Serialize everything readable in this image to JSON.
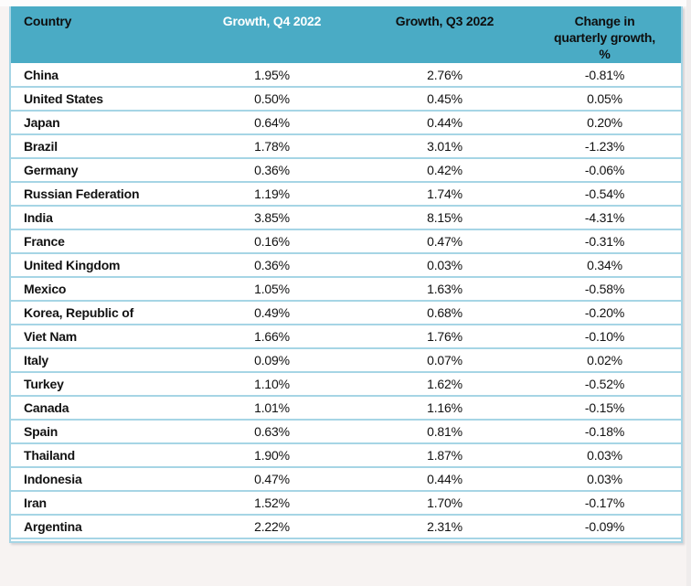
{
  "chart_data": {
    "type": "table",
    "title": "",
    "columns": [
      "Country",
      "Growth, Q4 2022",
      "Growth, Q3 2022",
      "Change in quarterly growth, %"
    ],
    "rows": [
      [
        "China",
        "1.95%",
        "2.76%",
        "-0.81%"
      ],
      [
        "United States",
        "0.50%",
        "0.45%",
        "0.05%"
      ],
      [
        "Japan",
        "0.64%",
        "0.44%",
        "0.20%"
      ],
      [
        "Brazil",
        "1.78%",
        "3.01%",
        "-1.23%"
      ],
      [
        "Germany",
        "0.36%",
        "0.42%",
        "-0.06%"
      ],
      [
        "Russian Federation",
        "1.19%",
        "1.74%",
        "-0.54%"
      ],
      [
        "India",
        "3.85%",
        "8.15%",
        "-4.31%"
      ],
      [
        "France",
        "0.16%",
        "0.47%",
        "-0.31%"
      ],
      [
        "United Kingdom",
        "0.36%",
        "0.03%",
        "0.34%"
      ],
      [
        "Mexico",
        "1.05%",
        "1.63%",
        "-0.58%"
      ],
      [
        "Korea, Republic of",
        "0.49%",
        "0.68%",
        "-0.20%"
      ],
      [
        "Viet Nam",
        "1.66%",
        "1.76%",
        "-0.10%"
      ],
      [
        "Italy",
        "0.09%",
        "0.07%",
        "0.02%"
      ],
      [
        "Turkey",
        "1.10%",
        "1.62%",
        "-0.52%"
      ],
      [
        "Canada",
        "1.01%",
        "1.16%",
        "-0.15%"
      ],
      [
        "Spain",
        "0.63%",
        "0.81%",
        "-0.18%"
      ],
      [
        "Thailand",
        "1.90%",
        "1.87%",
        "0.03%"
      ],
      [
        "Indonesia",
        "0.47%",
        "0.44%",
        "0.03%"
      ],
      [
        "Iran",
        "1.52%",
        "1.70%",
        "-0.17%"
      ],
      [
        "Argentina",
        "2.22%",
        "2.31%",
        "-0.09%"
      ]
    ]
  },
  "colors": {
    "header_bg": "#4aabc5",
    "header_text": "#0e0e0e",
    "header_text_q4": "#ffffff",
    "row_border": "#a6d5e5",
    "cell_text": "#121212",
    "page_bg": "#f7f3f2"
  }
}
